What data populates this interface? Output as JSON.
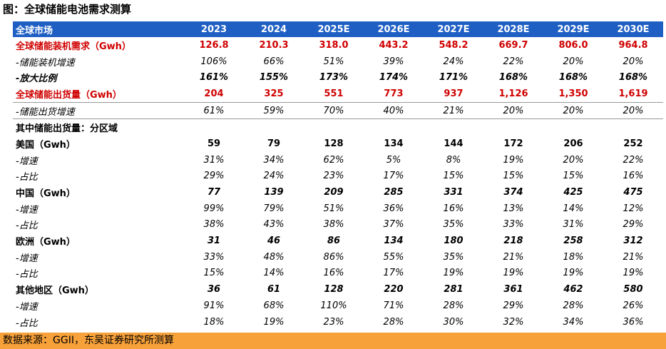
{
  "title": "图：全球储能电池需求测算",
  "table": {
    "header": [
      "全球市场",
      "2023",
      "2024",
      "2025E",
      "2026E",
      "2027E",
      "2028E",
      "2029E",
      "2030E"
    ],
    "rows": [
      [
        "全球储能装机需求（Gwh）",
        "126.8",
        "210.3",
        "318.0",
        "443.2",
        "548.2",
        "669.7",
        "806.0",
        "964.8"
      ],
      [
        "-储能装机增速",
        "106%",
        "66%",
        "51%",
        "39%",
        "24%",
        "22%",
        "20%",
        "20%"
      ],
      [
        "-放大比例",
        "161%",
        "155%",
        "173%",
        "174%",
        "171%",
        "168%",
        "168%",
        "168%"
      ],
      [
        "全球储能出货量（Gwh）",
        "204",
        "325",
        "551",
        "773",
        "937",
        "1,126",
        "1,350",
        "1,619"
      ],
      [
        "-储能出货增速",
        "61%",
        "59%",
        "70%",
        "40%",
        "21%",
        "20%",
        "20%",
        "20%"
      ],
      [
        "其中储能出货量：分区域"
      ],
      [
        "美国（Gwh）",
        "59",
        "79",
        "128",
        "134",
        "144",
        "172",
        "206",
        "252"
      ],
      [
        "-增速",
        "31%",
        "34%",
        "62%",
        "5%",
        "8%",
        "19%",
        "20%",
        "22%"
      ],
      [
        "-占比",
        "29%",
        "24%",
        "23%",
        "17%",
        "15%",
        "15%",
        "15%",
        "16%"
      ],
      [
        "中国（Gwh）",
        "77",
        "139",
        "209",
        "285",
        "331",
        "374",
        "425",
        "475"
      ],
      [
        "-增速",
        "99%",
        "79%",
        "51%",
        "36%",
        "16%",
        "13%",
        "14%",
        "12%"
      ],
      [
        "-占比",
        "38%",
        "43%",
        "38%",
        "37%",
        "35%",
        "33%",
        "31%",
        "29%"
      ],
      [
        "欧洲（Gwh）",
        "31",
        "46",
        "86",
        "134",
        "180",
        "218",
        "258",
        "312"
      ],
      [
        "-增速",
        "33%",
        "48%",
        "86%",
        "55%",
        "35%",
        "21%",
        "18%",
        "21%"
      ],
      [
        "-占比",
        "15%",
        "14%",
        "16%",
        "17%",
        "19%",
        "19%",
        "19%",
        "19%"
      ],
      [
        "其他地区（Gwh）",
        "36",
        "61",
        "128",
        "220",
        "281",
        "361",
        "462",
        "580"
      ],
      [
        "-增速",
        "91%",
        "68%",
        "110%",
        "71%",
        "28%",
        "29%",
        "28%",
        "26%"
      ],
      [
        "-占比",
        "18%",
        "19%",
        "23%",
        "28%",
        "30%",
        "32%",
        "34%",
        "36%"
      ]
    ]
  },
  "source": "数据来源：GGII，东吴证券研究所测算"
}
